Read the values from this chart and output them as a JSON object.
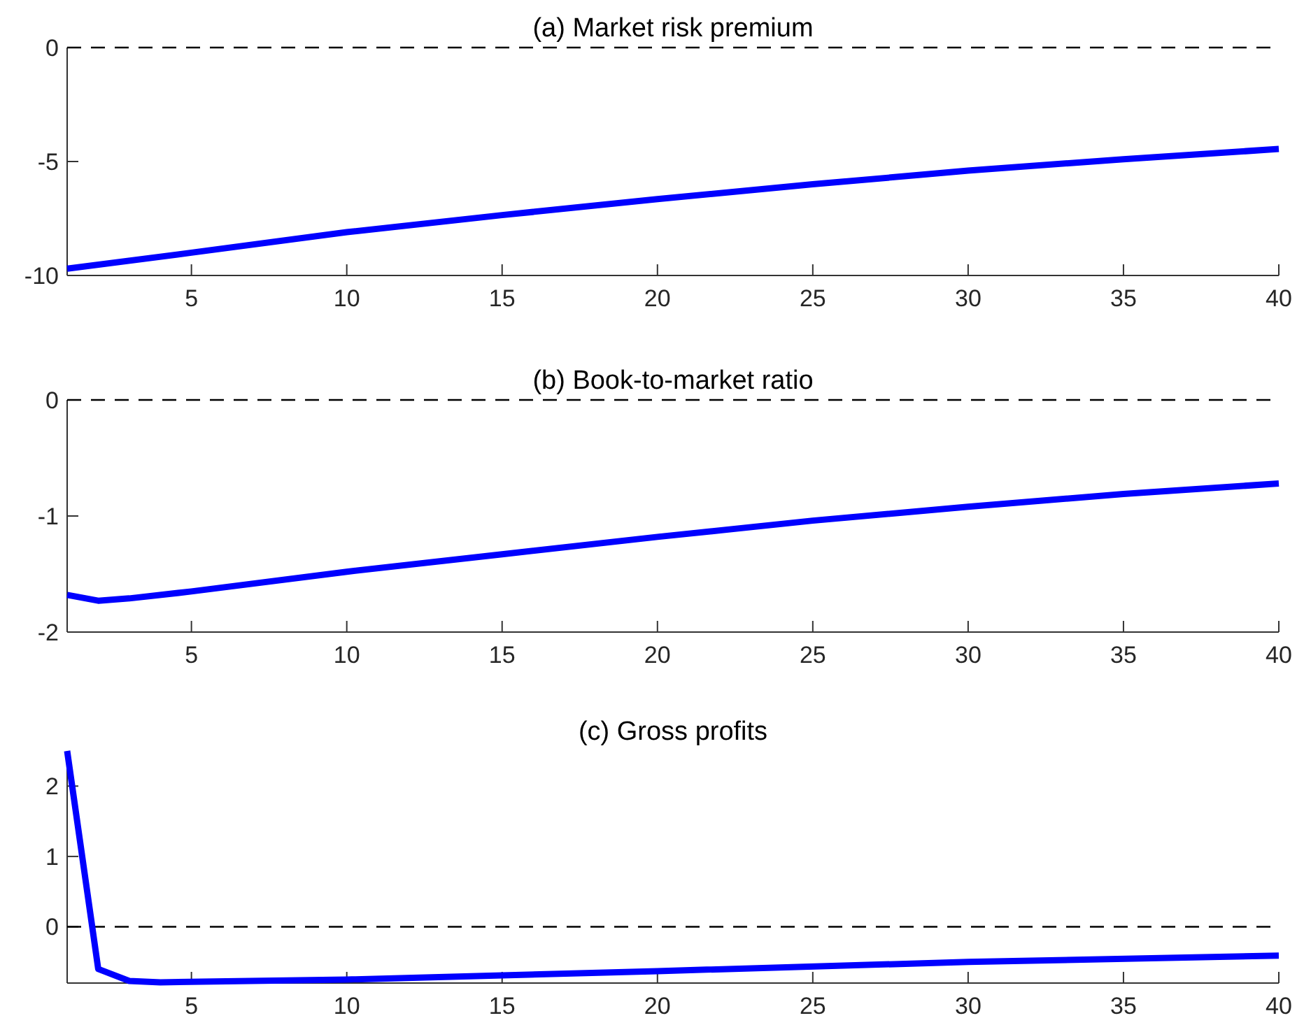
{
  "chart_data": [
    {
      "type": "line",
      "title": "(a) Market risk premium",
      "x": [
        1,
        5,
        10,
        15,
        20,
        25,
        30,
        35,
        40
      ],
      "series": [
        {
          "color": "#0000ff",
          "values": [
            -9.7,
            -9.0,
            -8.1,
            -7.35,
            -6.65,
            -6.0,
            -5.4,
            -4.9,
            -4.45
          ]
        }
      ],
      "xlim": [
        1,
        40
      ],
      "xticks": [
        5,
        10,
        15,
        20,
        25,
        30,
        35,
        40
      ],
      "ylim": [
        -10,
        0
      ],
      "yticks": [
        -10,
        -5,
        0
      ],
      "ref_lines": [
        {
          "axis": "y",
          "value": 0,
          "color": "#000000",
          "line_style": "dashed"
        }
      ],
      "grid": false
    },
    {
      "type": "line",
      "title": "(b) Book-to-market ratio",
      "x": [
        1,
        2,
        3,
        5,
        10,
        15,
        20,
        25,
        30,
        35,
        40
      ],
      "series": [
        {
          "color": "#0000ff",
          "values": [
            -1.68,
            -1.73,
            -1.71,
            -1.65,
            -1.48,
            -1.33,
            -1.18,
            -1.04,
            -0.92,
            -0.81,
            -0.72
          ]
        }
      ],
      "xlim": [
        1,
        40
      ],
      "xticks": [
        5,
        10,
        15,
        20,
        25,
        30,
        35,
        40
      ],
      "ylim": [
        -2,
        0
      ],
      "yticks": [
        -2,
        -1,
        0
      ],
      "ref_lines": [
        {
          "axis": "y",
          "value": 0,
          "color": "#000000",
          "line_style": "dashed"
        }
      ],
      "grid": false
    },
    {
      "type": "line",
      "title": "(c) Gross profits",
      "x": [
        1,
        2,
        3,
        4,
        10,
        20,
        30,
        40
      ],
      "series": [
        {
          "color": "#0000ff",
          "values": [
            2.5,
            -0.6,
            -0.77,
            -0.79,
            -0.75,
            -0.63,
            -0.5,
            -0.41
          ]
        }
      ],
      "xlim": [
        1,
        40
      ],
      "xticks": [
        5,
        10,
        15,
        20,
        25,
        30,
        35,
        40
      ],
      "ylim": [
        -0.8,
        2.5
      ],
      "yticks": [
        0,
        1,
        2
      ],
      "ref_lines": [
        {
          "axis": "y",
          "value": 0,
          "color": "#000000",
          "line_style": "dashed"
        }
      ],
      "grid": false
    }
  ]
}
